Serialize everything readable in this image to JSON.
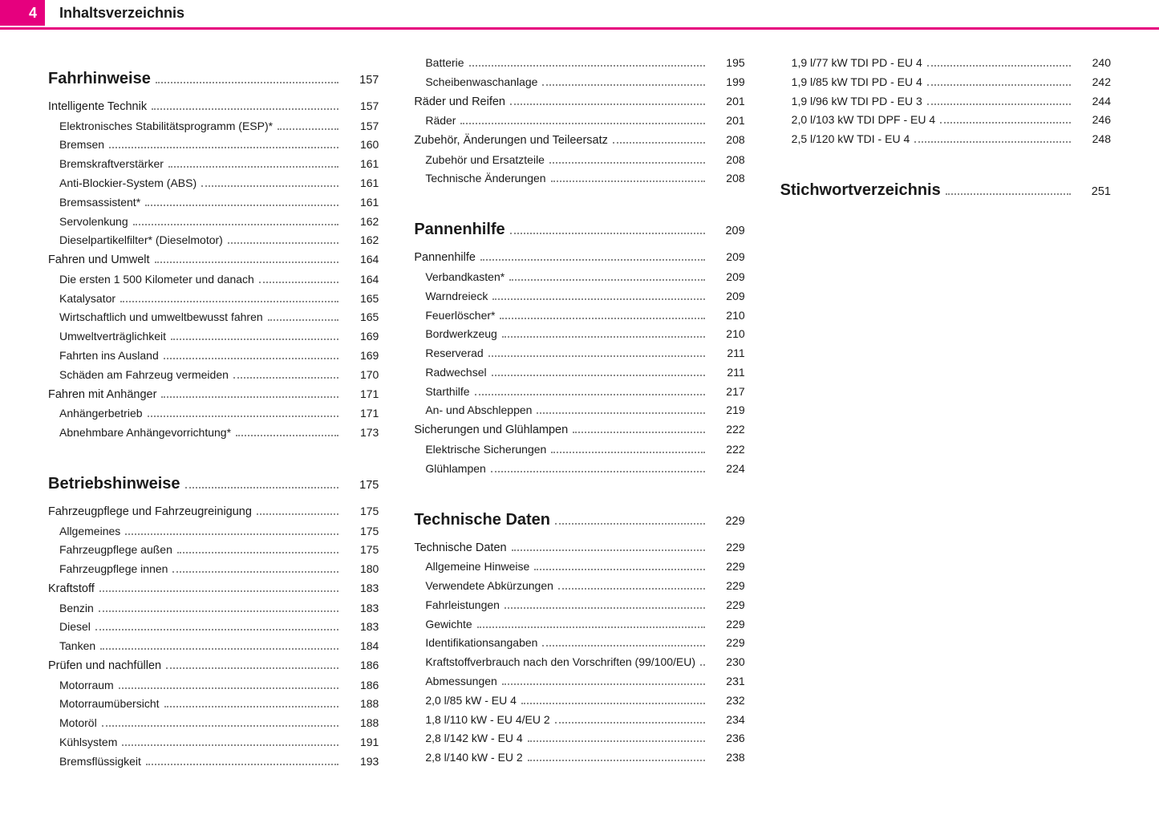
{
  "header": {
    "page_number": "4",
    "title": "Inhaltsverzeichnis"
  },
  "colors": {
    "accent": "#e6007e",
    "text": "#1a1a1a",
    "bg": "#ffffff",
    "leader": "#888888"
  },
  "typography": {
    "body_size_pt": 11,
    "section_size_pt": 15,
    "family": "Segoe UI / Myriad-like sans"
  },
  "toc": [
    {
      "level": "section",
      "label": "Fahrhinweise",
      "page": "157"
    },
    {
      "level": "sub1",
      "label": "Intelligente Technik",
      "page": "157"
    },
    {
      "level": "sub2",
      "label": "Elektronisches Stabilitätsprogramm (ESP)*",
      "page": "157"
    },
    {
      "level": "sub2",
      "label": "Bremsen",
      "page": "160"
    },
    {
      "level": "sub2",
      "label": "Bremskraftverstärker",
      "page": "161"
    },
    {
      "level": "sub2",
      "label": "Anti-Blockier-System (ABS)",
      "page": "161"
    },
    {
      "level": "sub2",
      "label": "Bremsassistent*",
      "page": "161"
    },
    {
      "level": "sub2",
      "label": "Servolenkung",
      "page": "162"
    },
    {
      "level": "sub2",
      "label": "Dieselpartikelfilter* (Dieselmotor)",
      "page": "162"
    },
    {
      "level": "sub1",
      "label": "Fahren und Umwelt",
      "page": "164"
    },
    {
      "level": "sub2",
      "label": "Die ersten 1 500 Kilometer und danach",
      "page": "164"
    },
    {
      "level": "sub2",
      "label": "Katalysator",
      "page": "165"
    },
    {
      "level": "sub2",
      "label": "Wirtschaftlich und umweltbewusst fahren",
      "page": "165"
    },
    {
      "level": "sub2",
      "label": "Umweltverträglichkeit",
      "page": "169"
    },
    {
      "level": "sub2",
      "label": "Fahrten ins Ausland",
      "page": "169"
    },
    {
      "level": "sub2",
      "label": "Schäden am Fahrzeug vermeiden",
      "page": "170"
    },
    {
      "level": "sub1",
      "label": "Fahren mit Anhänger",
      "page": "171"
    },
    {
      "level": "sub2",
      "label": "Anhängerbetrieb",
      "page": "171"
    },
    {
      "level": "sub2",
      "label": "Abnehmbare Anhängevorrichtung*",
      "page": "173"
    },
    {
      "level": "section",
      "label": "Betriebshinweise",
      "page": "175"
    },
    {
      "level": "sub1",
      "label": "Fahrzeugpflege und Fahrzeugreinigung",
      "page": "175"
    },
    {
      "level": "sub2",
      "label": "Allgemeines",
      "page": "175"
    },
    {
      "level": "sub2",
      "label": "Fahrzeugpflege außen",
      "page": "175"
    },
    {
      "level": "sub2",
      "label": "Fahrzeugpflege innen",
      "page": "180"
    },
    {
      "level": "sub1",
      "label": "Kraftstoff",
      "page": "183"
    },
    {
      "level": "sub2",
      "label": "Benzin",
      "page": "183"
    },
    {
      "level": "sub2",
      "label": "Diesel",
      "page": "183"
    },
    {
      "level": "sub2",
      "label": "Tanken",
      "page": "184"
    },
    {
      "level": "sub1",
      "label": "Prüfen und nachfüllen",
      "page": "186"
    },
    {
      "level": "sub2",
      "label": "Motorraum",
      "page": "186"
    },
    {
      "level": "sub2",
      "label": "Motorraumübersicht",
      "page": "188"
    },
    {
      "level": "sub2",
      "label": "Motoröl",
      "page": "188"
    },
    {
      "level": "sub2",
      "label": "Kühlsystem",
      "page": "191"
    },
    {
      "level": "sub2",
      "label": "Bremsflüssigkeit",
      "page": "193"
    },
    {
      "level": "sub2",
      "label": "Batterie",
      "page": "195"
    },
    {
      "level": "sub2",
      "label": "Scheibenwaschanlage",
      "page": "199"
    },
    {
      "level": "sub1",
      "label": "Räder und Reifen",
      "page": "201"
    },
    {
      "level": "sub2",
      "label": "Räder",
      "page": "201"
    },
    {
      "level": "sub1",
      "label": "Zubehör, Änderungen und Teileersatz",
      "page": "208"
    },
    {
      "level": "sub2",
      "label": "Zubehör und Ersatzteile",
      "page": "208"
    },
    {
      "level": "sub2",
      "label": "Technische Änderungen",
      "page": "208"
    },
    {
      "level": "section",
      "label": "Pannenhilfe",
      "page": "209"
    },
    {
      "level": "sub1",
      "label": "Pannenhilfe",
      "page": "209"
    },
    {
      "level": "sub2",
      "label": "Verbandkasten*",
      "page": "209"
    },
    {
      "level": "sub2",
      "label": "Warndreieck",
      "page": "209"
    },
    {
      "level": "sub2",
      "label": "Feuerlöscher*",
      "page": "210"
    },
    {
      "level": "sub2",
      "label": "Bordwerkzeug",
      "page": "210"
    },
    {
      "level": "sub2",
      "label": "Reserverad",
      "page": "211"
    },
    {
      "level": "sub2",
      "label": "Radwechsel",
      "page": "211"
    },
    {
      "level": "sub2",
      "label": "Starthilfe",
      "page": "217"
    },
    {
      "level": "sub2",
      "label": "An- und Abschleppen",
      "page": "219"
    },
    {
      "level": "sub1",
      "label": "Sicherungen und Glühlampen",
      "page": "222"
    },
    {
      "level": "sub2",
      "label": "Elektrische Sicherungen",
      "page": "222"
    },
    {
      "level": "sub2",
      "label": "Glühlampen",
      "page": "224"
    },
    {
      "level": "section",
      "label": "Technische Daten",
      "page": "229"
    },
    {
      "level": "sub1",
      "label": "Technische Daten",
      "page": "229"
    },
    {
      "level": "sub2",
      "label": "Allgemeine Hinweise",
      "page": "229"
    },
    {
      "level": "sub2",
      "label": "Verwendete Abkürzungen",
      "page": "229"
    },
    {
      "level": "sub2",
      "label": "Fahrleistungen",
      "page": "229"
    },
    {
      "level": "sub2",
      "label": "Gewichte",
      "page": "229"
    },
    {
      "level": "sub2",
      "label": "Identifikationsangaben",
      "page": "229"
    },
    {
      "level": "sub2",
      "label": "Kraftstoffverbrauch nach den Vorschriften (99/100/EU)",
      "page": "230"
    },
    {
      "level": "sub2",
      "label": "Abmessungen",
      "page": "231"
    },
    {
      "level": "sub2",
      "label": "2,0 l/85 kW - EU 4",
      "page": "232"
    },
    {
      "level": "sub2",
      "label": "1,8 l/110 kW - EU 4/EU 2",
      "page": "234"
    },
    {
      "level": "sub2",
      "label": "2,8 l/142 kW - EU 4",
      "page": "236"
    },
    {
      "level": "sub2",
      "label": "2,8 l/140 kW - EU 2",
      "page": "238"
    },
    {
      "level": "sub2",
      "label": "1,9 l/77 kW TDI PD - EU 4",
      "page": "240"
    },
    {
      "level": "sub2",
      "label": "1,9 l/85 kW TDI PD - EU 4",
      "page": "242"
    },
    {
      "level": "sub2",
      "label": "1,9 l/96 kW TDI PD - EU 3",
      "page": "244"
    },
    {
      "level": "sub2",
      "label": "2,0 l/103 kW TDI DPF - EU 4",
      "page": "246"
    },
    {
      "level": "sub2",
      "label": "2,5 l/120 kW TDI - EU 4",
      "page": "248"
    },
    {
      "level": "section",
      "label": "Stichwortverzeichnis",
      "page": "251"
    }
  ]
}
